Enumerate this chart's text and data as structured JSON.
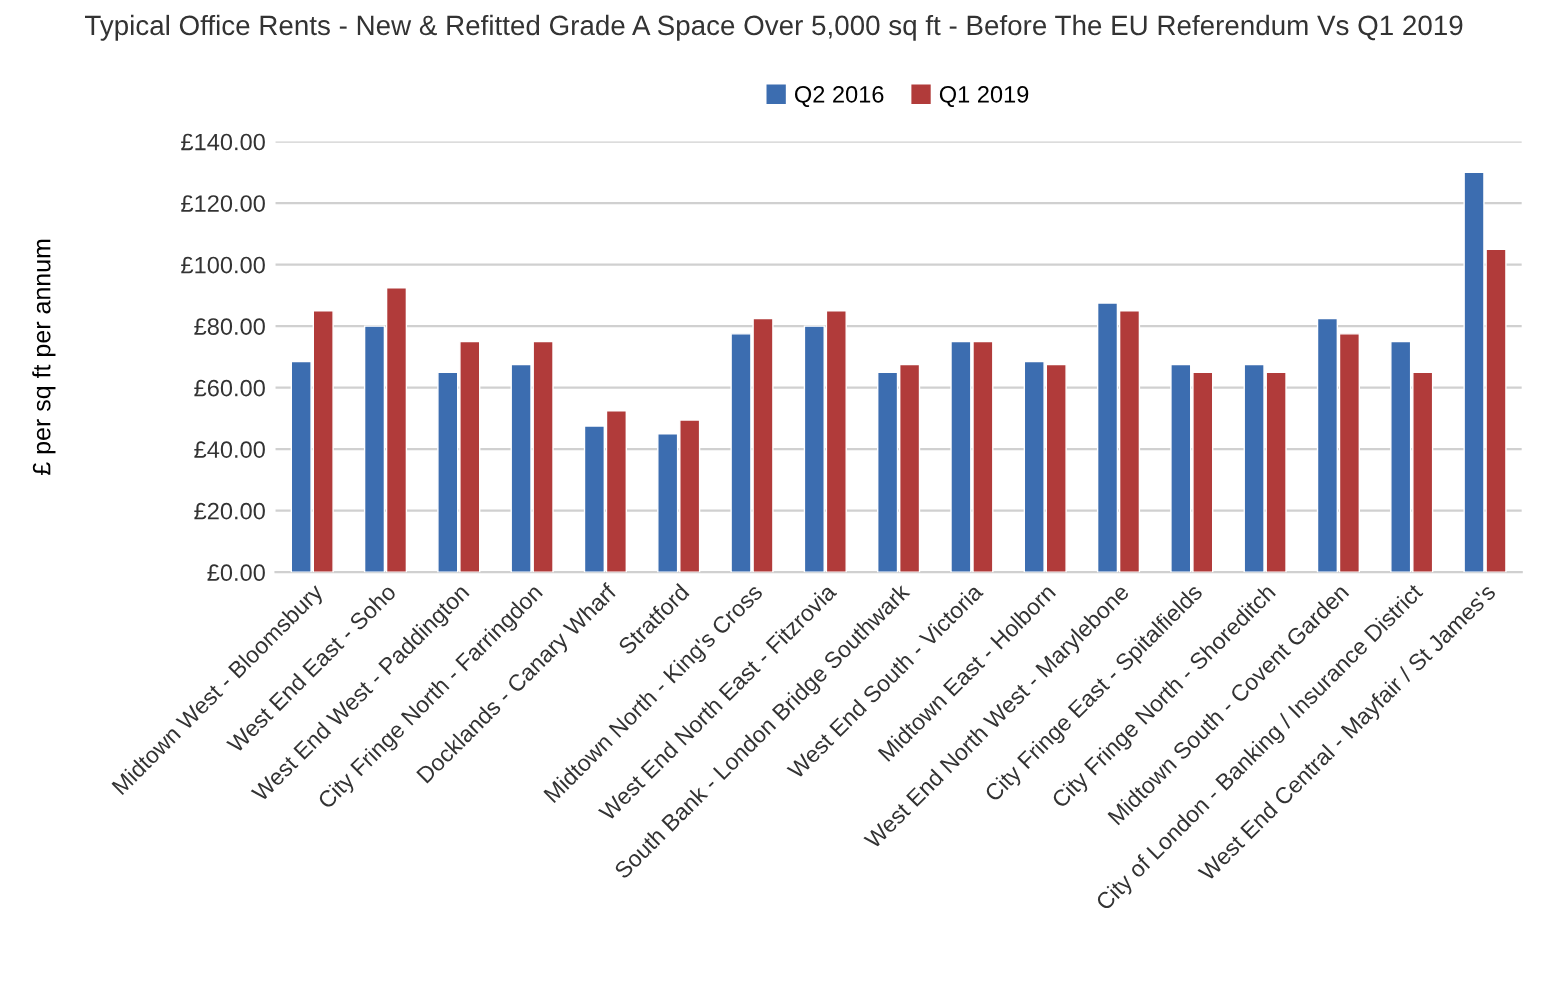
{
  "chart_data": {
    "type": "bar",
    "title": "Typical Office Rents - New & Refitted Grade A Space Over 5,000 sq ft - Before The EU Referendum Vs Q1 2019",
    "ylabel": "£ per sq ft per annum",
    "categories": [
      "Midtown West - Bloomsbury",
      "West End East - Soho",
      "West End West - Paddington",
      "City Fringe North - Farringdon",
      "Docklands - Canary Wharf",
      "Stratford",
      "Midtown North - King's Cross",
      "West End North East - Fitzrovia",
      "South Bank - London Bridge Southwark",
      "West End South - Victoria",
      "Midtown East - Holborn",
      "West End North West - Marylebone",
      "City Fringe East - Spitalfields",
      "City Fringe North - Shoreditch",
      "Midtown South - Covent Garden",
      "City of London - Banking / Insurance District",
      "West End Central - Mayfair / St James's"
    ],
    "series": [
      {
        "name": "Q2 2016",
        "color": "#3c6db0",
        "values": [
          68.5,
          80,
          65,
          67.5,
          47.5,
          45,
          77.5,
          80,
          65,
          75,
          68.5,
          87.5,
          67.5,
          67.5,
          82.5,
          75,
          130
        ]
      },
      {
        "name": "Q1 2019",
        "color": "#b13b3a",
        "values": [
          85,
          92.5,
          75,
          75,
          52.5,
          49.5,
          82.5,
          85,
          67.5,
          75,
          67.5,
          85,
          65,
          65,
          77.5,
          65,
          105
        ]
      }
    ],
    "ylim": [
      0,
      140
    ],
    "yticks": [
      {
        "value": 0,
        "label": "£0.00"
      },
      {
        "value": 20,
        "label": "£20.00"
      },
      {
        "value": 40,
        "label": "£40.00"
      },
      {
        "value": 60,
        "label": "£60.00"
      },
      {
        "value": 80,
        "label": "£80.00"
      },
      {
        "value": 100,
        "label": "£100.00"
      },
      {
        "value": 120,
        "label": "£120.00"
      },
      {
        "value": 140,
        "label": "£140.00"
      }
    ],
    "grid": "y",
    "legend": "top"
  }
}
